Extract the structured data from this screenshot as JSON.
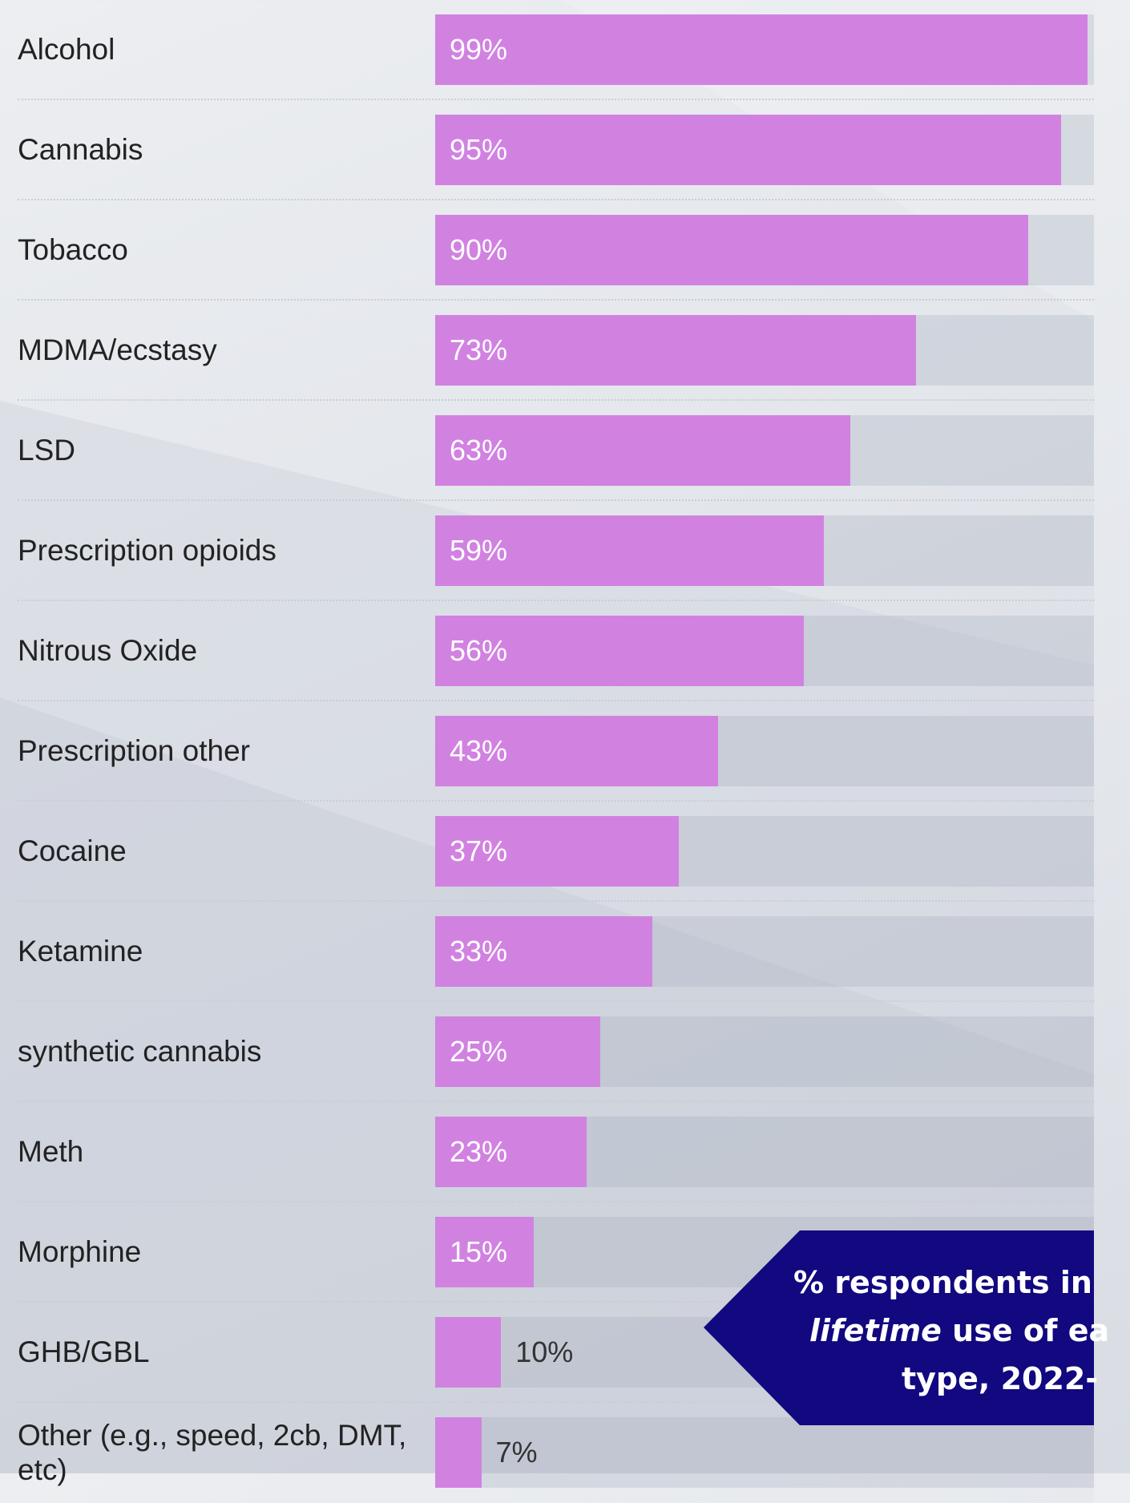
{
  "chart_data": {
    "type": "bar",
    "orientation": "horizontal",
    "categories": [
      "Alcohol",
      "Cannabis",
      "Tobacco",
      "MDMA/ecstasy",
      "LSD",
      "Prescription opioids",
      "Nitrous Oxide",
      "Prescription other",
      "Cocaine",
      "Ketamine",
      "synthetic cannabis",
      "Meth",
      "Morphine",
      "GHB/GBL",
      "Other (e.g., speed, 2cb, DMT, etc)"
    ],
    "values": [
      99,
      95,
      90,
      73,
      63,
      59,
      56,
      43,
      37,
      33,
      25,
      23,
      15,
      10,
      7
    ],
    "value_labels": [
      "99%",
      "95%",
      "90%",
      "73%",
      "63%",
      "59%",
      "56%",
      "43%",
      "37%",
      "33%",
      "25%",
      "23%",
      "15%",
      "10%",
      "7%"
    ],
    "xlim": [
      0,
      100
    ],
    "grid": false,
    "bar_color": "#d182e1",
    "track_color": "#c5cad4"
  },
  "callout": {
    "line1": "% respondents in",
    "line2_italic": "lifetime",
    "line2_rest": " use of ea",
    "line3": "type, 2022-",
    "color": "#12087f"
  }
}
